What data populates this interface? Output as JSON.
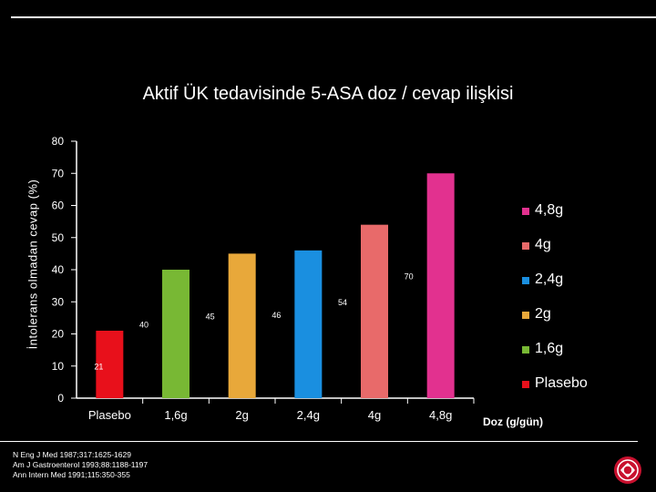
{
  "page": {
    "title": "Aktif ÜK tedavisinde 5-ASA doz / cevap ilişkisi",
    "references": [
      "N Eng J Med 1987;317:1625-1629",
      "Am J Gastroenterol 1993;88:1188-1197",
      "Ann Intern Med 1991;115:350-355"
    ],
    "logo_icon": "university-seal-icon"
  },
  "chart_data": {
    "type": "bar",
    "title": "Aktif ÜK tedavisinde 5-ASA doz / cevap ilişkisi",
    "xlabel": "Doz (g/gün)",
    "ylabel": "İntolerans olmadan cevap (%)",
    "ylim": [
      0,
      80
    ],
    "yticks": [
      0,
      10,
      20,
      30,
      40,
      50,
      60,
      70,
      80
    ],
    "categories": [
      "Plasebo",
      "1,6g",
      "2g",
      "2,4g",
      "4g",
      "4,8g"
    ],
    "values": [
      21,
      40,
      45,
      46,
      54,
      70
    ],
    "colors": [
      "#e8101b",
      "#78b834",
      "#e8a83a",
      "#1a8fe0",
      "#e86a6a",
      "#e2318f"
    ],
    "legend_position": "right",
    "legend": [
      {
        "label": "4,8g",
        "color": "#e2318f"
      },
      {
        "label": "4g",
        "color": "#e86a6a"
      },
      {
        "label": "2,4g",
        "color": "#1a8fe0"
      },
      {
        "label": "2g",
        "color": "#e8a83a"
      },
      {
        "label": "1,6g",
        "color": "#78b834"
      },
      {
        "label": "Plasebo",
        "color": "#e8101b"
      }
    ],
    "grid": false
  }
}
